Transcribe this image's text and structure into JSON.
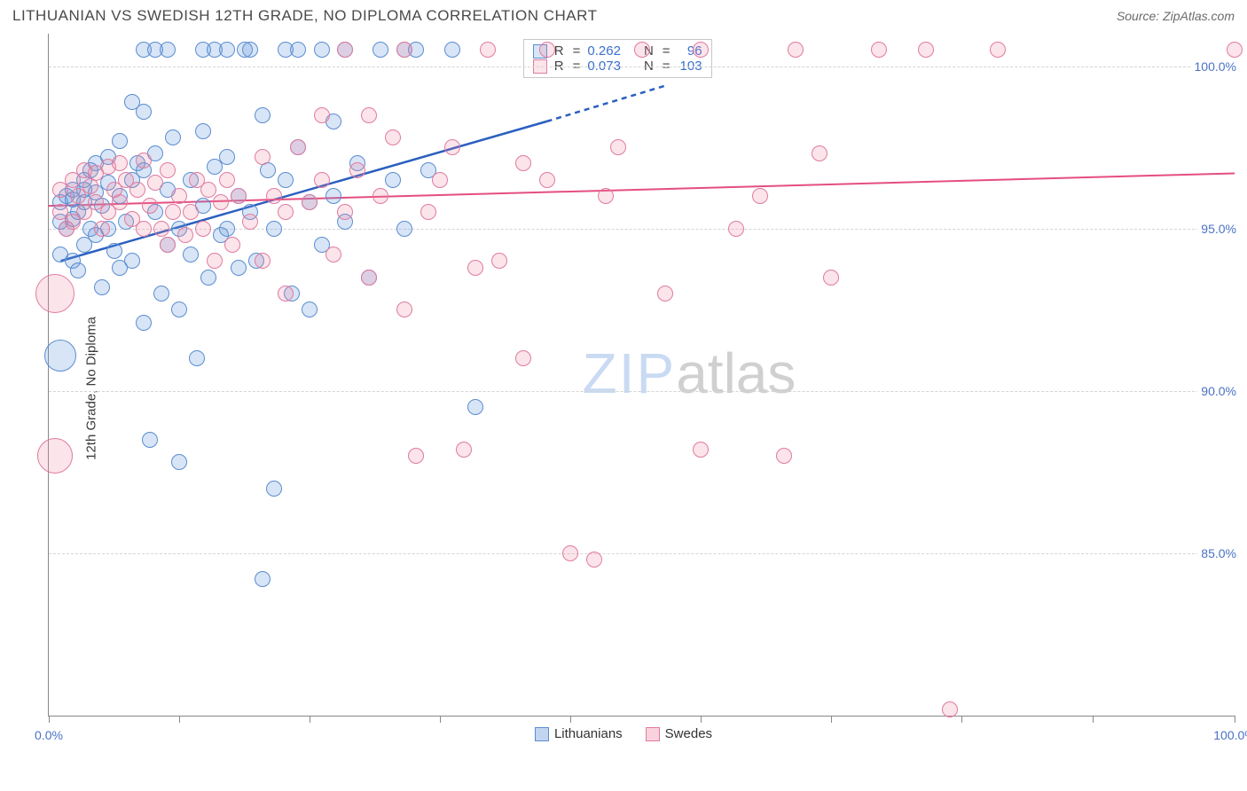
{
  "header": {
    "title": "LITHUANIAN VS SWEDISH 12TH GRADE, NO DIPLOMA CORRELATION CHART",
    "source_prefix": "Source: ",
    "source_name": "ZipAtlas.com"
  },
  "watermark": {
    "part1": "ZIP",
    "part2": "atlas"
  },
  "chart": {
    "type": "scatter",
    "ylabel": "12th Grade, No Diploma",
    "xlim": [
      0,
      100
    ],
    "ylim": [
      80,
      101
    ],
    "xtick_positions": [
      0,
      11,
      22,
      33,
      44,
      55,
      66,
      77,
      88,
      100
    ],
    "xtick_labels": {
      "0": "0.0%",
      "100": "100.0%"
    },
    "ytick_positions": [
      85,
      90,
      95,
      100
    ],
    "ytick_labels": [
      "85.0%",
      "90.0%",
      "95.0%",
      "100.0%"
    ],
    "background_color": "#ffffff",
    "grid_color": "#d4d4d4",
    "point_radius": 9,
    "series": [
      {
        "name": "Lithuanians",
        "color_fill": "rgba(100,150,220,0.25)",
        "color_stroke": "#5a8dd0",
        "trend_color": "#2a5fc0",
        "trend_width": 2.5,
        "R": "0.262",
        "N": "96",
        "trend": {
          "x1": 1,
          "y1": 94.0,
          "x2": 42,
          "y2": 98.3,
          "dash_x2": 52,
          "dash_y2": 99.4
        },
        "points": [
          [
            1,
            94.2
          ],
          [
            1,
            95.2
          ],
          [
            1,
            95.8
          ],
          [
            1.5,
            96.0
          ],
          [
            1.5,
            95.0
          ],
          [
            1,
            91.1,
            18
          ],
          [
            2,
            94.0
          ],
          [
            2,
            95.3
          ],
          [
            2,
            95.9
          ],
          [
            2,
            96.2
          ],
          [
            2.5,
            93.7
          ],
          [
            2.5,
            95.5
          ],
          [
            3,
            95.8
          ],
          [
            3,
            96.2
          ],
          [
            3,
            96.5
          ],
          [
            3,
            94.5
          ],
          [
            3.5,
            96.8
          ],
          [
            3.5,
            95.0
          ],
          [
            4,
            97.0
          ],
          [
            4,
            96.1
          ],
          [
            4,
            94.8
          ],
          [
            4.5,
            93.2
          ],
          [
            4.5,
            95.7
          ],
          [
            5,
            96.4
          ],
          [
            5,
            97.2
          ],
          [
            5,
            95.0
          ],
          [
            5.5,
            94.3
          ],
          [
            6,
            97.7
          ],
          [
            6,
            96.0
          ],
          [
            6,
            93.8
          ],
          [
            6.5,
            95.2
          ],
          [
            7,
            98.9
          ],
          [
            7,
            96.5
          ],
          [
            7,
            94.0
          ],
          [
            7.5,
            97.0
          ],
          [
            8,
            98.6
          ],
          [
            8,
            96.8
          ],
          [
            8,
            92.1
          ],
          [
            8.5,
            88.5
          ],
          [
            8,
            100.5
          ],
          [
            9,
            100.5
          ],
          [
            9,
            95.5
          ],
          [
            9,
            97.3
          ],
          [
            9.5,
            93.0
          ],
          [
            10,
            100.5
          ],
          [
            10,
            96.2
          ],
          [
            10,
            94.5
          ],
          [
            10.5,
            97.8
          ],
          [
            11,
            92.5
          ],
          [
            11,
            95.0
          ],
          [
            11,
            87.8
          ],
          [
            12,
            96.5
          ],
          [
            12,
            94.2
          ],
          [
            12.5,
            91.0
          ],
          [
            13,
            100.5
          ],
          [
            13,
            98.0
          ],
          [
            13,
            95.7
          ],
          [
            13.5,
            93.5
          ],
          [
            14,
            96.9
          ],
          [
            14,
            100.5
          ],
          [
            14.5,
            94.8
          ],
          [
            15,
            100.5
          ],
          [
            15,
            97.2
          ],
          [
            15,
            95.0
          ],
          [
            16,
            96.0
          ],
          [
            16,
            93.8
          ],
          [
            16.5,
            100.5
          ],
          [
            17,
            95.5
          ],
          [
            17,
            100.5
          ],
          [
            17.5,
            94.0
          ],
          [
            18,
            98.5
          ],
          [
            18,
            84.2
          ],
          [
            18.5,
            96.8
          ],
          [
            19,
            95.0
          ],
          [
            19,
            87.0
          ],
          [
            20,
            100.5
          ],
          [
            20,
            96.5
          ],
          [
            20.5,
            93.0
          ],
          [
            21,
            97.5
          ],
          [
            21,
            100.5
          ],
          [
            22,
            95.8
          ],
          [
            22,
            92.5
          ],
          [
            23,
            100.5
          ],
          [
            23,
            94.5
          ],
          [
            24,
            98.3
          ],
          [
            24,
            96.0
          ],
          [
            25,
            100.5
          ],
          [
            25,
            95.2
          ],
          [
            26,
            97.0
          ],
          [
            27,
            93.5
          ],
          [
            28,
            100.5
          ],
          [
            29,
            96.5
          ],
          [
            30,
            100.5
          ],
          [
            30,
            95.0
          ],
          [
            31,
            100.5
          ],
          [
            32,
            96.8
          ],
          [
            34,
            100.5
          ],
          [
            36,
            89.5
          ]
        ]
      },
      {
        "name": "Swedes",
        "color_fill": "rgba(235,130,160,0.22)",
        "color_stroke": "#e07ba0",
        "trend_color": "#e54e80",
        "trend_width": 2,
        "R": "0.073",
        "N": "103",
        "trend": {
          "x1": 0,
          "y1": 95.7,
          "x2": 100,
          "y2": 96.7
        },
        "points": [
          [
            0.5,
            93.0,
            22
          ],
          [
            0.5,
            88.0,
            20
          ],
          [
            1,
            95.5
          ],
          [
            1,
            96.2
          ],
          [
            1.5,
            95.0
          ],
          [
            2,
            96.5
          ],
          [
            2,
            95.2
          ],
          [
            2.5,
            96.0
          ],
          [
            3,
            96.8
          ],
          [
            3,
            95.5
          ],
          [
            3.5,
            96.3
          ],
          [
            4,
            95.8
          ],
          [
            4,
            96.7
          ],
          [
            4.5,
            95.0
          ],
          [
            5,
            96.9
          ],
          [
            5,
            95.5
          ],
          [
            5.5,
            96.2
          ],
          [
            6,
            97.0
          ],
          [
            6,
            95.8
          ],
          [
            6.5,
            96.5
          ],
          [
            7,
            95.3
          ],
          [
            7.5,
            96.2
          ],
          [
            8,
            97.1
          ],
          [
            8,
            95.0
          ],
          [
            8.5,
            95.7
          ],
          [
            9,
            96.4
          ],
          [
            9.5,
            95.0
          ],
          [
            10,
            96.8
          ],
          [
            10,
            94.5
          ],
          [
            10.5,
            95.5
          ],
          [
            11,
            96.0
          ],
          [
            11.5,
            94.8
          ],
          [
            12,
            95.5
          ],
          [
            12.5,
            96.5
          ],
          [
            13,
            95.0
          ],
          [
            13.5,
            96.2
          ],
          [
            14,
            94.0
          ],
          [
            14.5,
            95.8
          ],
          [
            15,
            96.5
          ],
          [
            15.5,
            94.5
          ],
          [
            16,
            96.0
          ],
          [
            17,
            95.2
          ],
          [
            18,
            97.2
          ],
          [
            18,
            94.0
          ],
          [
            19,
            96.0
          ],
          [
            20,
            93.0
          ],
          [
            20,
            95.5
          ],
          [
            21,
            97.5
          ],
          [
            22,
            95.8
          ],
          [
            23,
            96.5
          ],
          [
            23,
            98.5
          ],
          [
            24,
            94.2
          ],
          [
            25,
            95.5
          ],
          [
            25,
            100.5
          ],
          [
            26,
            96.8
          ],
          [
            27,
            93.5
          ],
          [
            27,
            98.5
          ],
          [
            28,
            96.0
          ],
          [
            29,
            97.8
          ],
          [
            30,
            100.5
          ],
          [
            30,
            92.5
          ],
          [
            31,
            88.0
          ],
          [
            32,
            95.5
          ],
          [
            33,
            96.5
          ],
          [
            34,
            97.5
          ],
          [
            35,
            88.2
          ],
          [
            36,
            93.8
          ],
          [
            37,
            100.5
          ],
          [
            38,
            94.0
          ],
          [
            40,
            97.0
          ],
          [
            40,
            91.0
          ],
          [
            42,
            96.5
          ],
          [
            42,
            100.5
          ],
          [
            44,
            85.0
          ],
          [
            46,
            84.8
          ],
          [
            47,
            96.0
          ],
          [
            48,
            97.5
          ],
          [
            50,
            100.5
          ],
          [
            52,
            93.0
          ],
          [
            55,
            88.2
          ],
          [
            55,
            100.5
          ],
          [
            58,
            95.0
          ],
          [
            60,
            96.0
          ],
          [
            62,
            88.0
          ],
          [
            63,
            100.5
          ],
          [
            65,
            97.3
          ],
          [
            66,
            93.5
          ],
          [
            70,
            100.5
          ],
          [
            74,
            100.5
          ],
          [
            76,
            80.2
          ],
          [
            80,
            100.5
          ],
          [
            100,
            100.5
          ]
        ]
      }
    ],
    "bottom_legend": [
      {
        "label": "Lithuanians",
        "swatch_fill": "rgba(100,150,220,0.4)",
        "swatch_stroke": "#5a8dd0"
      },
      {
        "label": "Swedes",
        "swatch_fill": "rgba(235,130,160,0.35)",
        "swatch_stroke": "#e07ba0"
      }
    ]
  }
}
